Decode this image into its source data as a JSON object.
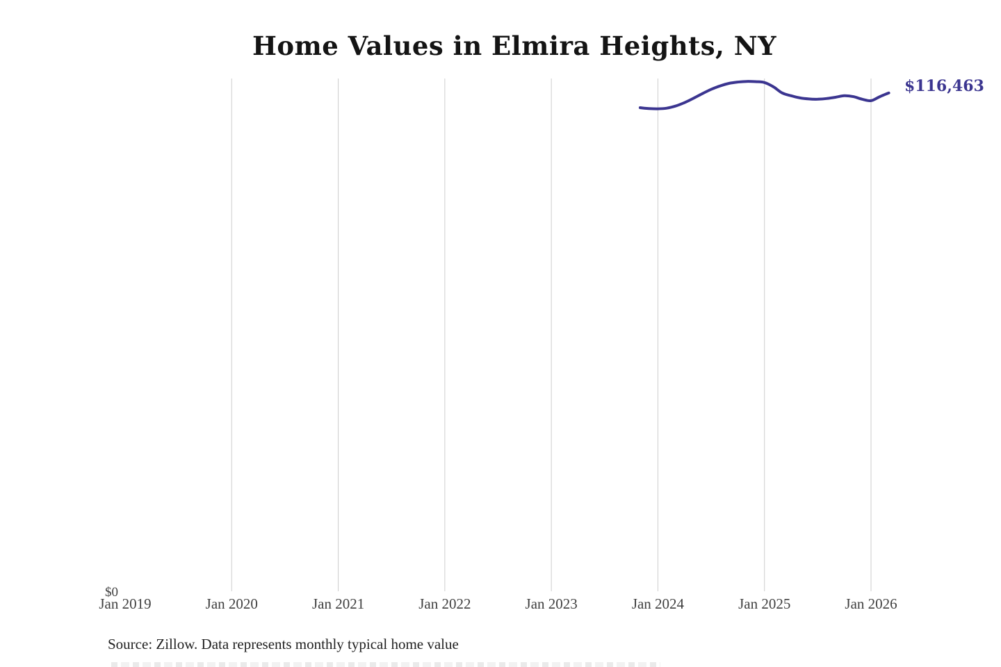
{
  "title": "Home Values in Elmira Heights, NY",
  "source_note": "Source: Zillow. Data represents monthly typical home value",
  "y_axis": {
    "zero_label": "$0"
  },
  "end_value_label": "$116,463",
  "colors": {
    "line": "#3b3590",
    "end_label_text": "#3b3590",
    "gridline": "#cdcdcd",
    "axis_text": "#3f3f3f",
    "title_text": "#141414"
  },
  "chart_data": {
    "type": "line",
    "title": "Home Values in Elmira Heights, NY",
    "xlabel": "",
    "ylabel": "",
    "ylim": [
      0,
      120000
    ],
    "grid": "vertical-only",
    "legend": "none",
    "x_axis_tick_labels": [
      "Jan 2019",
      "Jan 2020",
      "Jan 2021",
      "Jan 2022",
      "Jan 2023",
      "Jan 2024",
      "Jan 2025",
      "Jan 2026"
    ],
    "y_axis_tick_labels": [
      "$0"
    ],
    "last_point_annotation": "$116,463",
    "categories": [
      "2023-11",
      "2023-12",
      "2024-01",
      "2024-02",
      "2024-03",
      "2024-04",
      "2024-05",
      "2024-06",
      "2024-07",
      "2024-08",
      "2024-09",
      "2024-10",
      "2024-11",
      "2024-12",
      "2025-01",
      "2025-02",
      "2025-03",
      "2025-04",
      "2025-05",
      "2025-06",
      "2025-07",
      "2025-08",
      "2025-09",
      "2025-10",
      "2025-11",
      "2025-12",
      "2026-01",
      "2026-02",
      "2026-03"
    ],
    "series": [
      {
        "name": "Monthly typical home value",
        "values": [
          113000,
          112800,
          112750,
          112900,
          113400,
          114200,
          115200,
          116300,
          117300,
          118100,
          118700,
          119000,
          119150,
          119100,
          118900,
          117900,
          116450,
          115800,
          115300,
          115050,
          115000,
          115150,
          115450,
          115800,
          115600,
          115000,
          114650,
          115600,
          116463
        ]
      }
    ]
  }
}
